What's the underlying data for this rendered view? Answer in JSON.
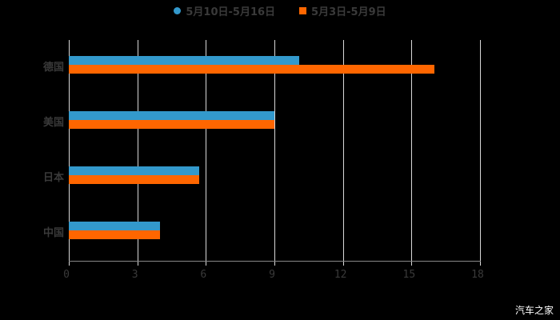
{
  "chart_data": {
    "type": "bar",
    "orientation": "horizontal",
    "categories": [
      "德国",
      "美国",
      "日本",
      "中国"
    ],
    "series": [
      {
        "name": "5月10日-5月16日",
        "color": "#3399cc",
        "values": [
          10.1,
          9,
          5.7,
          4
        ]
      },
      {
        "name": "5月3日-5月9日",
        "color": "#ff6600",
        "values": [
          16,
          9,
          5.7,
          4
        ]
      }
    ],
    "title": "",
    "xlabel": "",
    "ylabel": "",
    "xlim": [
      0,
      18
    ],
    "xticks": [
      "0",
      "3",
      "6",
      "9",
      "12",
      "15",
      "18"
    ],
    "grid": true,
    "legend_position": "top"
  },
  "legend": {
    "items": [
      {
        "label": "5月10日-5月16日",
        "color": "#3399cc"
      },
      {
        "label": "5月3日-5月9日",
        "color": "#ff6600"
      }
    ]
  },
  "watermark": "汽车之家"
}
